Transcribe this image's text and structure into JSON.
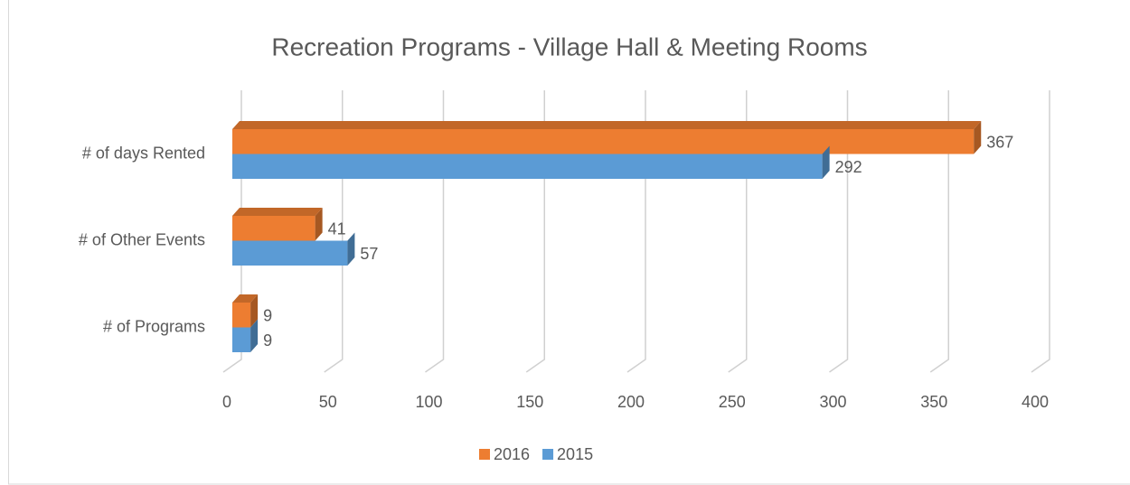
{
  "chart_data": {
    "type": "bar",
    "orientation": "horizontal",
    "title": "Recreation Programs - Village Hall & Meeting Rooms",
    "categories": [
      "# of days Rented",
      "# of Other Events",
      "# of Programs"
    ],
    "series": [
      {
        "name": "2016",
        "color": "#ed7d31",
        "values": [
          367,
          41,
          9
        ]
      },
      {
        "name": "2015",
        "color": "#5b9bd5",
        "values": [
          292,
          57,
          9
        ]
      }
    ],
    "xlim": [
      0,
      400
    ],
    "xticks": [
      0,
      50,
      100,
      150,
      200,
      250,
      300,
      350,
      400
    ],
    "grid": true,
    "legend": "bottom"
  }
}
